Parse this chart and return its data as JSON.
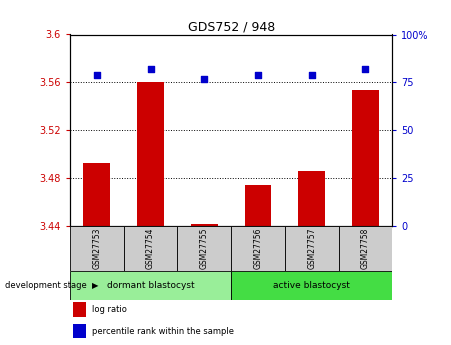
{
  "title": "GDS752 / 948",
  "samples": [
    "GSM27753",
    "GSM27754",
    "GSM27755",
    "GSM27756",
    "GSM27757",
    "GSM27758"
  ],
  "log_ratio": [
    3.493,
    3.56,
    3.442,
    3.474,
    3.486,
    3.554
  ],
  "percentile_rank": [
    79,
    82,
    77,
    79,
    79,
    82
  ],
  "ylim_left": [
    3.44,
    3.6
  ],
  "ylim_right": [
    0,
    100
  ],
  "yticks_left": [
    3.44,
    3.48,
    3.52,
    3.56,
    3.6
  ],
  "yticks_right": [
    0,
    25,
    50,
    75,
    100
  ],
  "ytick_labels_left": [
    "3.44",
    "3.48",
    "3.52",
    "3.56",
    "3.6"
  ],
  "ytick_labels_right": [
    "0",
    "25",
    "50",
    "75",
    "100%"
  ],
  "bar_color": "#cc0000",
  "dot_color": "#0000cc",
  "groups": [
    {
      "label": "dormant blastocyst",
      "samples": [
        0,
        1,
        2
      ],
      "color": "#99ee99"
    },
    {
      "label": "active blastocyst",
      "samples": [
        3,
        4,
        5
      ],
      "color": "#44dd44"
    }
  ],
  "group_label_prefix": "development stage",
  "legend_items": [
    {
      "label": "log ratio",
      "color": "#cc0000"
    },
    {
      "label": "percentile rank within the sample",
      "color": "#0000cc"
    }
  ],
  "background_color": "#ffffff",
  "plot_bg_color": "#ffffff",
  "tick_box_color": "#cccccc"
}
